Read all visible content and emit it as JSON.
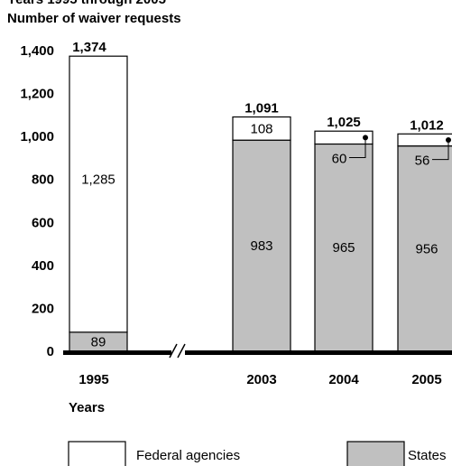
{
  "chart_data": {
    "type": "bar",
    "stacked": true,
    "title": "Years 1995 through 2005",
    "ylabel": "Number of waiver requests",
    "xlabel": "Years",
    "ylim": [
      0,
      1400
    ],
    "ytick_values": [
      0,
      200,
      400,
      600,
      800,
      1000,
      1200,
      1400
    ],
    "ytick_labels": [
      "0",
      "200",
      "400",
      "600",
      "800",
      "1,000",
      "1,200",
      "1,400"
    ],
    "categories": [
      "1995",
      "2003",
      "2004",
      "2005"
    ],
    "axis_break": "between 1995 and 2003",
    "series": [
      {
        "name": "States",
        "color": "#c0c0c0",
        "values": [
          89,
          983,
          965,
          956
        ],
        "labels": [
          "89",
          "983",
          "965",
          "956"
        ]
      },
      {
        "name": "Federal agencies",
        "color": "#ffffff",
        "values": [
          1285,
          108,
          60,
          56
        ],
        "labels": [
          "1,285",
          "108",
          "60",
          "56"
        ]
      }
    ],
    "totals": [
      1374,
      1091,
      1025,
      1012
    ],
    "total_labels": [
      "1,374",
      "1,091",
      "1,025",
      "1,012"
    ],
    "legend": [
      {
        "label": "Federal agencies",
        "color": "#ffffff"
      },
      {
        "label": "States",
        "color": "#c0c0c0"
      }
    ],
    "legend_position": "bottom"
  }
}
